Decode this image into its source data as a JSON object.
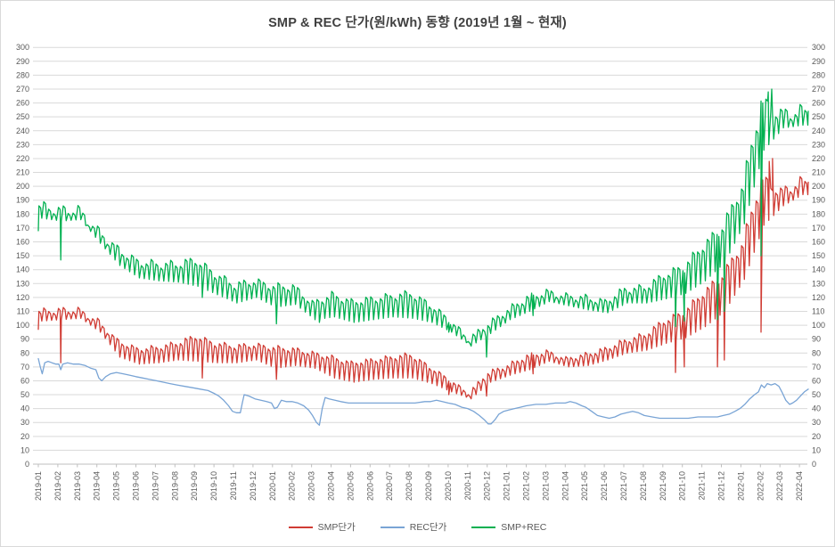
{
  "page": {
    "title": "SMP & REC 단가(원/kWh) 동향 (2019년 1월 ~ 현재)"
  },
  "chart_data": {
    "type": "line",
    "title": "SMP & REC 단가(원/kWh) 동향 (2019년 1월 ~ 현재)",
    "xlabel": "",
    "ylabel": "원/kWh",
    "grid": true,
    "legend_position": "bottom",
    "y_axis": {
      "min": 0,
      "max": 300,
      "step": 10,
      "tick_values": [
        0,
        10,
        20,
        30,
        40,
        50,
        60,
        70,
        80,
        90,
        100,
        110,
        120,
        130,
        140,
        150,
        160,
        170,
        180,
        190,
        200,
        210,
        220,
        230,
        240,
        250,
        260,
        270,
        280,
        290,
        300
      ],
      "shown_on_both_sides": true
    },
    "x_labels": [
      "2019-01",
      "2019-02",
      "2019-03",
      "2019-04",
      "2019-05",
      "2019-06",
      "2019-07",
      "2019-08",
      "2019-09",
      "2019-10",
      "2019-11",
      "2019-12",
      "2020-01",
      "2020-02",
      "2020-03",
      "2020-04",
      "2020-05",
      "2020-06",
      "2020-07",
      "2020-08",
      "2020-09",
      "2020-10",
      "2020-11",
      "2020-12",
      "2021-01",
      "2021-02",
      "2021-03",
      "2021-04",
      "2021-05",
      "2021-06",
      "2021-07",
      "2021-08",
      "2021-09",
      "2021-10",
      "2021-11",
      "2021-12",
      "2022-01",
      "2022-02",
      "2022-03",
      "2022-04"
    ],
    "x_unit": "fractional months since 2019-01",
    "x_end": 39.45,
    "colors": {
      "smp": "#d03c34",
      "rec": "#79a4d5",
      "sum": "#00b050",
      "grid": "#d9d9d9",
      "axis": "#bfbfbf",
      "tick_text": "#595959",
      "title_text": "#404040"
    },
    "series": [
      {
        "name": "SMP단가",
        "color": "#d03c34",
        "style": "zigzag",
        "monthly_top_dip": [
          [
            110,
            103
          ],
          [
            111,
            104
          ],
          [
            111,
            105
          ],
          [
            103,
            95
          ],
          [
            89,
            77
          ],
          [
            83,
            72
          ],
          [
            84,
            73
          ],
          [
            87,
            75
          ],
          [
            92,
            74
          ],
          [
            87,
            73
          ],
          [
            85,
            73
          ],
          [
            86,
            75
          ],
          [
            84,
            69
          ],
          [
            83,
            71
          ],
          [
            80,
            69
          ],
          [
            77,
            62
          ],
          [
            73,
            59
          ],
          [
            75,
            61
          ],
          [
            77,
            62
          ],
          [
            79,
            62
          ],
          [
            70,
            58
          ],
          [
            61,
            52
          ],
          [
            51,
            47
          ],
          [
            66,
            59
          ],
          [
            71,
            64
          ],
          [
            78,
            68
          ],
          [
            81,
            74
          ],
          [
            76,
            70
          ],
          [
            79,
            71
          ],
          [
            83,
            75
          ],
          [
            89,
            80
          ],
          [
            93,
            82
          ],
          [
            103,
            87
          ],
          [
            109,
            91
          ],
          [
            123,
            99
          ],
          [
            136,
            110
          ],
          [
            158,
            133
          ],
          [
            205,
            172
          ],
          [
            196,
            186
          ],
          [
            203,
            194
          ]
        ],
        "holiday_dips": [
          [
            0.0,
            97
          ],
          [
            1.15,
            73
          ],
          [
            8.4,
            62
          ],
          [
            12.2,
            61
          ],
          [
            21.03,
            50
          ],
          [
            22.97,
            49
          ],
          [
            25.35,
            65
          ],
          [
            32.65,
            66
          ],
          [
            33.1,
            70
          ],
          [
            34.8,
            70
          ],
          [
            35.15,
            75
          ],
          [
            37.03,
            95
          ],
          [
            37.45,
            218
          ],
          [
            37.62,
            220
          ]
        ]
      },
      {
        "name": "REC단가",
        "color": "#79a4d5",
        "style": "polyline",
        "points": [
          [
            0,
            76
          ],
          [
            0.1,
            70
          ],
          [
            0.2,
            65
          ],
          [
            0.33,
            73
          ],
          [
            0.5,
            74
          ],
          [
            0.7,
            73
          ],
          [
            0.9,
            72
          ],
          [
            1.05,
            72
          ],
          [
            1.15,
            68
          ],
          [
            1.25,
            72
          ],
          [
            1.5,
            73
          ],
          [
            1.8,
            72
          ],
          [
            2.1,
            72
          ],
          [
            2.4,
            71
          ],
          [
            2.7,
            69
          ],
          [
            2.95,
            68
          ],
          [
            3.1,
            62
          ],
          [
            3.25,
            60
          ],
          [
            3.45,
            63
          ],
          [
            3.7,
            65
          ],
          [
            4.0,
            66
          ],
          [
            4.35,
            65
          ],
          [
            4.7,
            64
          ],
          [
            5.0,
            63
          ],
          [
            5.35,
            62
          ],
          [
            5.7,
            61
          ],
          [
            6.05,
            60
          ],
          [
            6.4,
            59
          ],
          [
            6.75,
            58
          ],
          [
            7.1,
            57
          ],
          [
            7.5,
            56
          ],
          [
            7.9,
            55
          ],
          [
            8.3,
            54
          ],
          [
            8.7,
            53
          ],
          [
            9.0,
            51
          ],
          [
            9.25,
            49
          ],
          [
            9.5,
            46
          ],
          [
            9.75,
            42
          ],
          [
            9.95,
            38
          ],
          [
            10.15,
            37
          ],
          [
            10.35,
            37
          ],
          [
            10.45,
            44
          ],
          [
            10.55,
            50
          ],
          [
            10.8,
            49
          ],
          [
            11.1,
            47
          ],
          [
            11.4,
            46
          ],
          [
            11.7,
            45
          ],
          [
            11.95,
            44
          ],
          [
            12.1,
            40
          ],
          [
            12.25,
            41
          ],
          [
            12.45,
            46
          ],
          [
            12.7,
            45
          ],
          [
            13.0,
            45
          ],
          [
            13.3,
            44
          ],
          [
            13.6,
            42
          ],
          [
            13.85,
            39
          ],
          [
            14.05,
            35
          ],
          [
            14.25,
            30
          ],
          [
            14.4,
            28
          ],
          [
            14.55,
            40
          ],
          [
            14.7,
            48
          ],
          [
            14.9,
            47
          ],
          [
            15.2,
            46
          ],
          [
            15.5,
            45
          ],
          [
            15.9,
            44
          ],
          [
            16.3,
            44
          ],
          [
            16.8,
            44
          ],
          [
            17.3,
            44
          ],
          [
            17.8,
            44
          ],
          [
            18.3,
            44
          ],
          [
            18.8,
            44
          ],
          [
            19.3,
            44
          ],
          [
            19.8,
            45
          ],
          [
            20.1,
            45
          ],
          [
            20.4,
            46
          ],
          [
            20.7,
            45
          ],
          [
            21.0,
            44
          ],
          [
            21.35,
            43
          ],
          [
            21.7,
            41
          ],
          [
            22.0,
            40
          ],
          [
            22.3,
            38
          ],
          [
            22.6,
            35
          ],
          [
            22.85,
            32
          ],
          [
            23.05,
            29
          ],
          [
            23.2,
            29
          ],
          [
            23.4,
            32
          ],
          [
            23.6,
            36
          ],
          [
            23.85,
            38
          ],
          [
            24.1,
            39
          ],
          [
            24.4,
            40
          ],
          [
            24.7,
            41
          ],
          [
            25.0,
            42
          ],
          [
            25.5,
            43
          ],
          [
            26.0,
            43
          ],
          [
            26.5,
            44
          ],
          [
            27.0,
            44
          ],
          [
            27.25,
            45
          ],
          [
            27.55,
            44
          ],
          [
            27.85,
            42
          ],
          [
            28.05,
            41
          ],
          [
            28.35,
            38
          ],
          [
            28.65,
            35
          ],
          [
            28.95,
            34
          ],
          [
            29.25,
            33
          ],
          [
            29.55,
            34
          ],
          [
            29.85,
            36
          ],
          [
            30.15,
            37
          ],
          [
            30.45,
            38
          ],
          [
            30.75,
            37
          ],
          [
            31.05,
            35
          ],
          [
            31.45,
            34
          ],
          [
            31.85,
            33
          ],
          [
            32.3,
            33
          ],
          [
            32.8,
            33
          ],
          [
            33.3,
            33
          ],
          [
            33.8,
            34
          ],
          [
            34.3,
            34
          ],
          [
            34.8,
            34
          ],
          [
            35.1,
            35
          ],
          [
            35.4,
            36
          ],
          [
            35.7,
            38
          ],
          [
            35.95,
            40
          ],
          [
            36.2,
            43
          ],
          [
            36.45,
            47
          ],
          [
            36.7,
            50
          ],
          [
            36.9,
            52
          ],
          [
            37.05,
            57
          ],
          [
            37.2,
            55
          ],
          [
            37.35,
            58
          ],
          [
            37.55,
            57
          ],
          [
            37.75,
            58
          ],
          [
            37.95,
            56
          ],
          [
            38.1,
            52
          ],
          [
            38.3,
            46
          ],
          [
            38.5,
            43
          ],
          [
            38.65,
            44
          ],
          [
            38.85,
            46
          ],
          [
            39.05,
            49
          ],
          [
            39.25,
            52
          ],
          [
            39.45,
            54
          ]
        ]
      },
      {
        "name": "SMP+REC",
        "color": "#00b050",
        "style": "zigzag",
        "monthly_top_dip": [
          [
            186,
            177
          ],
          [
            183,
            175
          ],
          [
            183,
            176
          ],
          [
            168,
            159
          ],
          [
            155,
            143
          ],
          [
            146,
            134
          ],
          [
            144,
            132
          ],
          [
            144,
            131
          ],
          [
            147,
            128
          ],
          [
            137,
            122
          ],
          [
            129,
            116
          ],
          [
            132,
            120
          ],
          [
            128,
            113
          ],
          [
            128,
            115
          ],
          [
            116,
            104
          ],
          [
            122,
            106
          ],
          [
            117,
            102
          ],
          [
            119,
            104
          ],
          [
            121,
            106
          ],
          [
            123,
            105
          ],
          [
            115,
            102
          ],
          [
            104,
            95
          ],
          [
            90,
            85
          ],
          [
            101,
            94
          ],
          [
            111,
            104
          ],
          [
            120,
            110
          ],
          [
            124,
            117
          ],
          [
            121,
            114
          ],
          [
            120,
            111
          ],
          [
            117,
            109
          ],
          [
            126,
            116
          ],
          [
            127,
            116
          ],
          [
            136,
            119
          ],
          [
            142,
            123
          ],
          [
            157,
            132
          ],
          [
            171,
            145
          ],
          [
            199,
            173
          ],
          [
            260,
            226
          ],
          [
            252,
            242
          ],
          [
            254,
            244
          ]
        ],
        "holiday_dips": [
          [
            0.0,
            168
          ],
          [
            1.15,
            147
          ],
          [
            8.4,
            120
          ],
          [
            12.2,
            101
          ],
          [
            14.4,
            102
          ],
          [
            21.03,
            95
          ],
          [
            22.97,
            77
          ],
          [
            25.35,
            107
          ],
          [
            32.65,
            99
          ],
          [
            33.1,
            103
          ],
          [
            34.8,
            104
          ],
          [
            35.15,
            110
          ],
          [
            37.03,
            150
          ],
          [
            37.4,
            268
          ],
          [
            37.58,
            270
          ]
        ]
      }
    ]
  },
  "legend": {
    "items": [
      "SMP단가",
      "REC단가",
      "SMP+REC"
    ]
  }
}
